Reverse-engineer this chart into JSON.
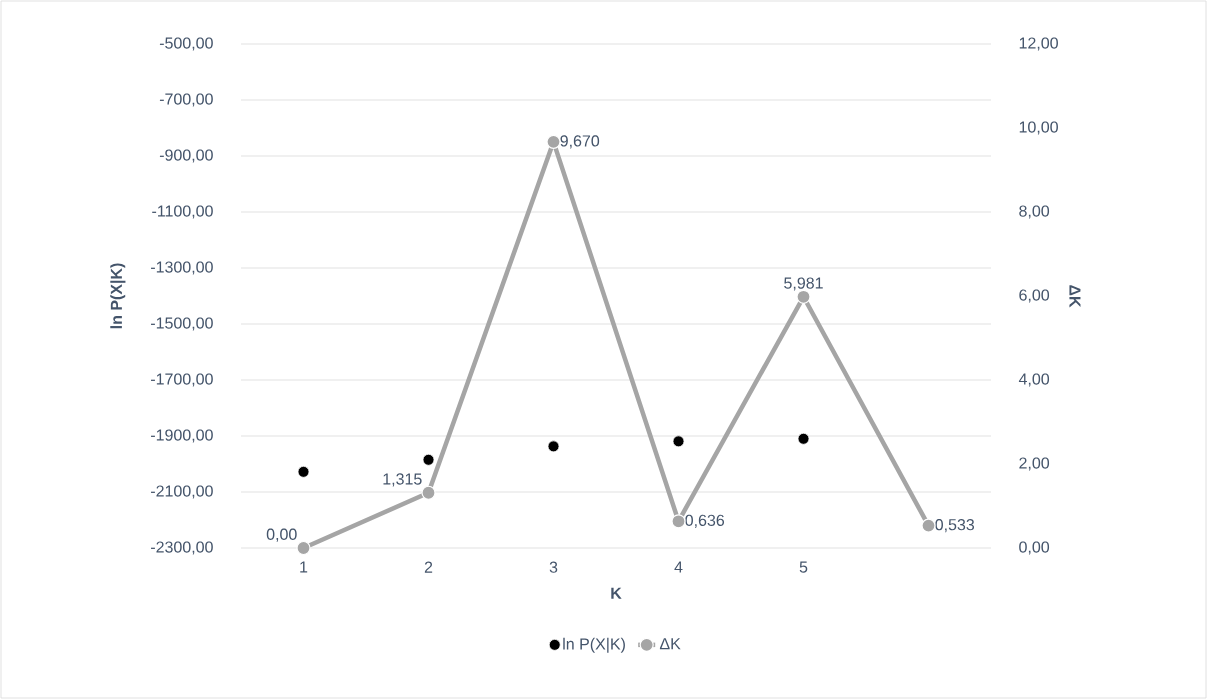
{
  "chart_data": {
    "type": "line",
    "xlabel": "K",
    "ylabel": "ln P(X|K)",
    "y2label": "ΔK",
    "categories": [
      "1",
      "2",
      "3",
      "4",
      "5",
      null
    ],
    "series": [
      {
        "name": "ln P(X|K)",
        "type": "scatter",
        "color": "#000000",
        "marker": "circle",
        "values": [
          -2028,
          -1985,
          -1937,
          -1919,
          -1910,
          null
        ]
      },
      {
        "name": "ΔK",
        "axis": "y2",
        "color": "#a5a5a5",
        "marker": "circle",
        "values": [
          0,
          1.315,
          9.67,
          0.636,
          5.981,
          0.533
        ],
        "value_labels": [
          "0,00",
          "1,315",
          "9,670",
          "0,636",
          "5,981",
          "0,533"
        ]
      }
    ],
    "ylim": [
      -2300,
      -500
    ],
    "yticks": [
      {
        "value": -2300,
        "label": "-2300,00"
      },
      {
        "value": -2100,
        "label": "-2100,00"
      },
      {
        "value": -1900,
        "label": "-1900,00"
      },
      {
        "value": -1700,
        "label": "-1700,00"
      },
      {
        "value": -1500,
        "label": "-1500,00"
      },
      {
        "value": -1300,
        "label": "-1300,00"
      },
      {
        "value": -1100,
        "label": "-1100,00"
      },
      {
        "value": -900,
        "label": "-900,00"
      },
      {
        "value": -700,
        "label": "-700,00"
      },
      {
        "value": -500,
        "label": "-500,00"
      }
    ],
    "y2lim": [
      0,
      12
    ],
    "y2ticks": [
      {
        "value": 0,
        "label": "0,00"
      },
      {
        "value": 2,
        "label": "2,00"
      },
      {
        "value": 4,
        "label": "4,00"
      },
      {
        "value": 6,
        "label": "6,00"
      },
      {
        "value": 8,
        "label": "8,00"
      },
      {
        "value": 10,
        "label": "10,00"
      },
      {
        "value": 12,
        "label": "12,00"
      }
    ],
    "grid": "y",
    "legend": "bottom"
  }
}
